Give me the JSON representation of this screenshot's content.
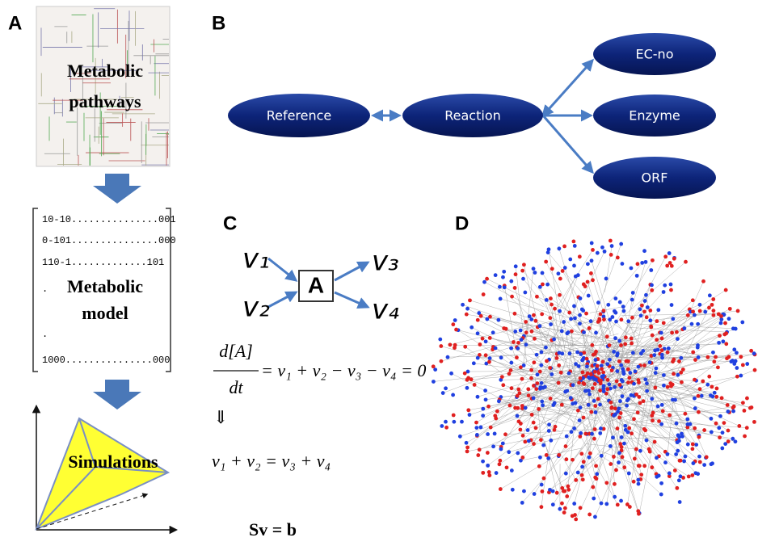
{
  "panels": {
    "a": {
      "label": "A",
      "pathways_lines": [
        "Metabolic",
        "pathways"
      ],
      "matrix_rows": [
        "10-10...............001",
        "0-101...............000",
        "110-1.............101",
        ".",
        ".",
        "1000...............000"
      ],
      "model_lines": [
        "Metabolic",
        "model"
      ],
      "simulations": "Simulations"
    },
    "b": {
      "label": "B",
      "nodes": [
        "Reference",
        "Reaction",
        "EC-no",
        "Enzyme",
        "ORF"
      ]
    },
    "c": {
      "label": "C",
      "fluxes": [
        "v₁",
        "v₂",
        "v₃",
        "v₄"
      ],
      "metabolite": "A",
      "numerator": "d[A]",
      "denominator": "dt",
      "balance": "= v₁ + v₂ − v₃ − v₄ = 0",
      "implies": "⇓",
      "steady_state": "v₁ + v₂ = v₃ + v₄",
      "matrix_form": "Sv = b"
    },
    "d": {
      "label": "D"
    }
  }
}
